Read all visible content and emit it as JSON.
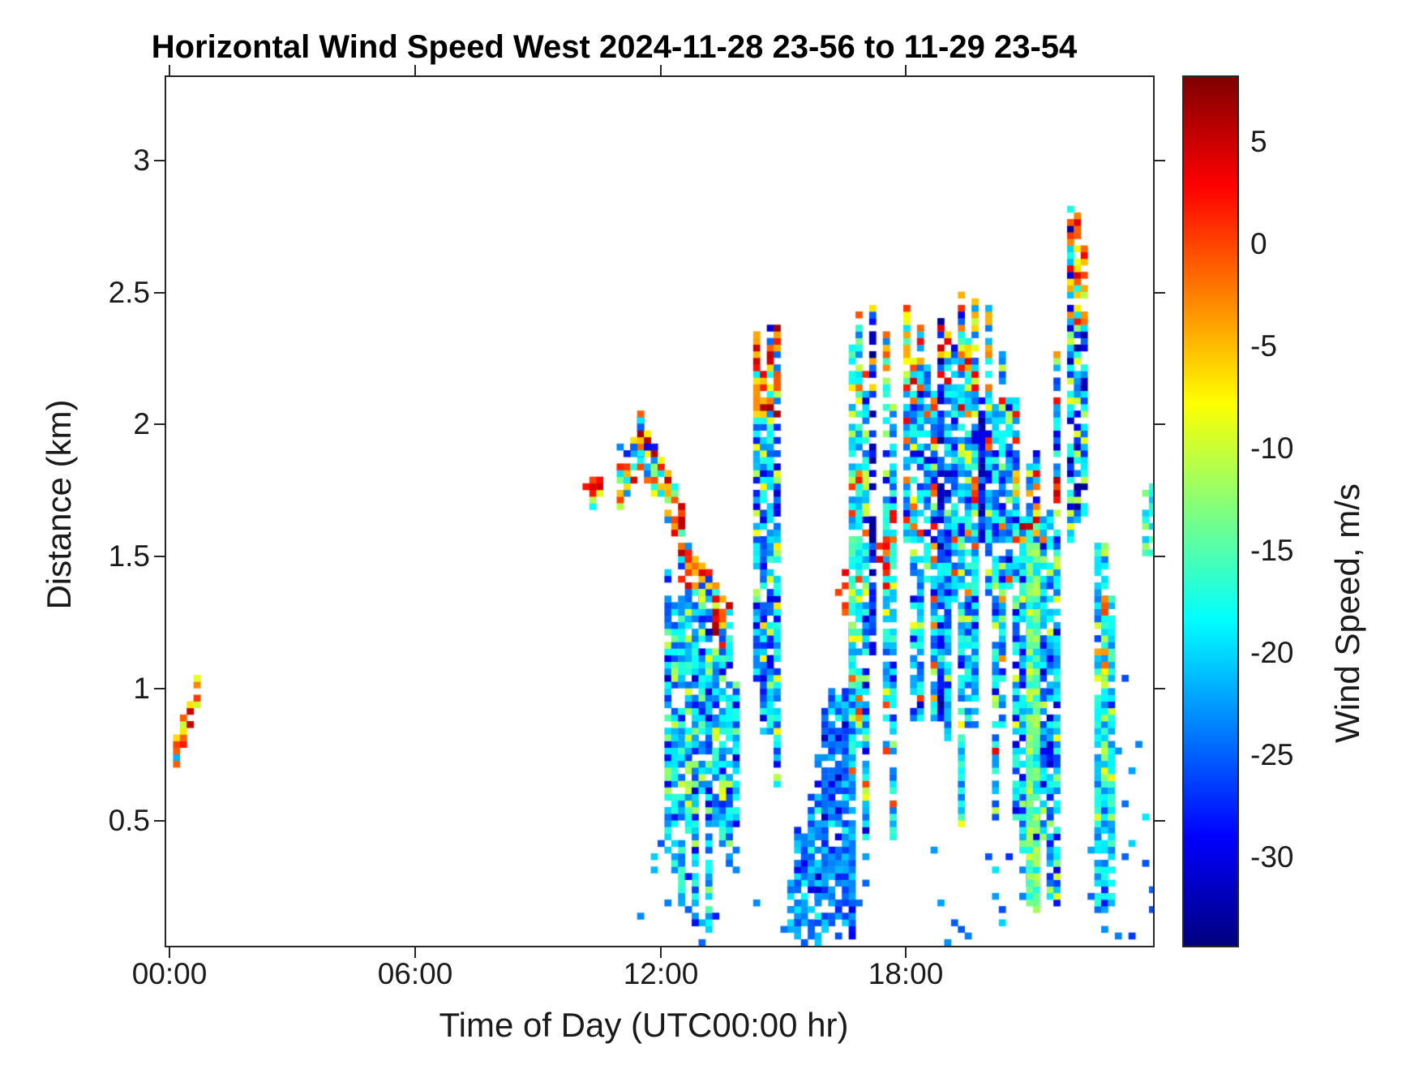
{
  "chart_data": {
    "type": "heatmap",
    "title": "Horizontal Wind Speed West 2024-11-28 23-56 to 11-29 23-54",
    "xlabel": "Time of Day (UTC00:00 hr)",
    "ylabel": "Distance (km)",
    "colorbar_label": "Wind Speed, m/s",
    "colormap": "jet",
    "background": "#ffffff",
    "frame_color": "#262626",
    "xlim_hours": [
      -0.07,
      24.03
    ],
    "ylim_km": [
      0.028,
      3.315
    ],
    "colorbar_range_ms": [
      -34.3,
      8.2
    ],
    "cell_size": {
      "hours": 0.1667,
      "km": 0.025
    },
    "grid": "off",
    "x_ticks": [
      {
        "hour": 0,
        "label": "00:00"
      },
      {
        "hour": 6,
        "label": "06:00"
      },
      {
        "hour": 12,
        "label": "12:00"
      },
      {
        "hour": 18,
        "label": "18:00"
      }
    ],
    "y_ticks": [
      {
        "km": 0.5,
        "label": "0.5"
      },
      {
        "km": 1.0,
        "label": "1"
      },
      {
        "km": 1.5,
        "label": "1.5"
      },
      {
        "km": 2.0,
        "label": "2"
      },
      {
        "km": 2.5,
        "label": "2.5"
      },
      {
        "km": 3.0,
        "label": "3"
      }
    ],
    "colorbar_ticks": [
      {
        "value": 5,
        "label": "5"
      },
      {
        "value": 0,
        "label": "0"
      },
      {
        "value": -5,
        "label": "-5"
      },
      {
        "value": -10,
        "label": "-10"
      },
      {
        "value": -15,
        "label": "-15"
      },
      {
        "value": -20,
        "label": "-20"
      },
      {
        "value": -25,
        "label": "-25"
      },
      {
        "value": -30,
        "label": "-30"
      }
    ],
    "clusters": [
      {
        "name": "dawn-stripe",
        "kind": "stripe",
        "seed": 11,
        "t": [
          0.03,
          0.66
        ],
        "z0": 0.75,
        "slope": 0.45,
        "hw": 0.055,
        "fill": 0.78,
        "mix": [
          [
            0.28,
            0,
            7
          ],
          [
            0.27,
            -4,
            1
          ],
          [
            0.2,
            -9,
            -5
          ],
          [
            0.1,
            -14,
            -9
          ],
          [
            0.15,
            -27,
            -17
          ]
        ]
      },
      {
        "name": "warm-blob-1010",
        "kind": "blob",
        "seed": 22,
        "t": [
          10.1,
          10.52
        ],
        "z": [
          1.69,
          1.83
        ],
        "fill": 0.85,
        "mix": [
          [
            0.45,
            1,
            7
          ],
          [
            0.2,
            -3,
            1
          ],
          [
            0.15,
            -11,
            -6
          ],
          [
            0.2,
            -21,
            -15
          ]
        ]
      },
      {
        "name": "arch-rise",
        "kind": "stripe",
        "seed": 33,
        "t": [
          10.85,
          11.4
        ],
        "z0": 1.76,
        "slope": 0.33,
        "hw": 0.085,
        "fill": 0.82,
        "mix": [
          [
            0.3,
            1,
            7
          ],
          [
            0.25,
            -4,
            1
          ],
          [
            0.15,
            -9,
            -4
          ],
          [
            0.12,
            -14,
            -9
          ],
          [
            0.18,
            -25,
            -16
          ]
        ]
      },
      {
        "name": "arch-fall",
        "kind": "stripe",
        "seed": 44,
        "t": [
          11.4,
          12.42
        ],
        "z0": 1.94,
        "slope": -0.33,
        "hw": 0.095,
        "fill": 0.78,
        "mix": [
          [
            0.3,
            1,
            7
          ],
          [
            0.25,
            -4,
            1
          ],
          [
            0.15,
            -9,
            -4
          ],
          [
            0.12,
            -14,
            -9
          ],
          [
            0.18,
            -25,
            -16
          ]
        ]
      },
      {
        "name": "arch-fringe",
        "kind": "specks",
        "seed": 55,
        "t": [
          10.9,
          12.25
        ],
        "z": [
          1.88,
          2.03
        ],
        "density": 0.2,
        "mix": [
          [
            0.55,
            -26,
            -18
          ],
          [
            0.25,
            -31,
            -26
          ],
          [
            0.2,
            -16,
            -11
          ]
        ]
      },
      {
        "name": "descending-tail",
        "kind": "stripe",
        "seed": 66,
        "t": [
          12.42,
          13.6
        ],
        "z0": 1.5,
        "slope": -0.25,
        "hw": 0.09,
        "fill": 0.72,
        "mix": [
          [
            0.22,
            0,
            6
          ],
          [
            0.18,
            -6,
            -1
          ],
          [
            0.15,
            -12,
            -7
          ],
          [
            0.27,
            -21,
            -15
          ],
          [
            0.18,
            -27,
            -21
          ]
        ]
      },
      {
        "name": "red-blob-1320",
        "kind": "blob",
        "seed": 77,
        "t": [
          13.12,
          13.5
        ],
        "z": [
          1.19,
          1.35
        ],
        "fill": 0.8,
        "mix": [
          [
            0.55,
            2,
            8
          ],
          [
            0.25,
            -2,
            2
          ],
          [
            0.2,
            -9,
            -3
          ]
        ]
      },
      {
        "name": "midday-columns",
        "kind": "columns",
        "seed": 88,
        "t": [
          12.15,
          13.95
        ],
        "col_prob": 0.88,
        "bottom": [
          0.06,
          0.55
        ],
        "topf": [
          1.5,
          1.15
        ],
        "topvar": 0.15,
        "fill": 0.82,
        "mix": [
          [
            0.42,
            -20,
            -16
          ],
          [
            0.36,
            -26,
            -21
          ],
          [
            0.1,
            -31,
            -27
          ],
          [
            0.12,
            -14,
            -9
          ]
        ]
      },
      {
        "name": "green-streak-1300",
        "kind": "stripe",
        "seed": 99,
        "t": [
          12.85,
          13.38
        ],
        "z0": 1.32,
        "slope": -1.45,
        "hw": 0.028,
        "fill": 0.9,
        "mix": [
          [
            0.5,
            -12,
            -8
          ],
          [
            0.35,
            -16,
            -12
          ],
          [
            0.15,
            -19,
            -16
          ]
        ]
      },
      {
        "name": "midday-bottom-specks",
        "kind": "specks",
        "seed": 110,
        "t": [
          11.3,
          14.45
        ],
        "z": [
          0.03,
          0.45
        ],
        "density": 0.05,
        "mix": [
          [
            0.7,
            -29,
            -23
          ],
          [
            0.3,
            -24,
            -19
          ]
        ]
      },
      {
        "name": "column-1430",
        "kind": "columns",
        "seed": 121,
        "t": [
          14.33,
          14.87
        ],
        "col_prob": 1,
        "bottom": [
          0.55,
          0.5
        ],
        "top": [
          2.45,
          0.35
        ],
        "fill": 0.85,
        "mix": [
          [
            0.4,
            -21,
            -16
          ],
          [
            0.3,
            -27,
            -22
          ],
          [
            0.12,
            -31,
            -28
          ],
          [
            0.18,
            -13,
            -6
          ]
        ],
        "cap": {
          "z": 2.02,
          "prob": 0.75,
          "mix": [
            [
              0.5,
              0,
              7
            ],
            [
              0.3,
              -5,
              0
            ],
            [
              0.2,
              -10,
              -5
            ]
          ]
        }
      },
      {
        "name": "rain-columns",
        "kind": "columns",
        "seed": 132,
        "t": [
          15.05,
          16.55
        ],
        "col_prob": 0.95,
        "bottom": [
          0.03,
          0.12
        ],
        "topf": [
          0.5,
          1.35
        ],
        "topvar": 0.3,
        "fill": 0.85,
        "mix": [
          [
            0.5,
            -27,
            -22
          ],
          [
            0.32,
            -23,
            -19
          ],
          [
            0.12,
            -31,
            -28
          ],
          [
            0.06,
            -18,
            -15
          ]
        ]
      },
      {
        "name": "rain-specks",
        "kind": "specks",
        "seed": 143,
        "t": [
          14.9,
          17.0
        ],
        "z": [
          0.03,
          0.35
        ],
        "density": 0.1,
        "mix": [
          [
            0.8,
            -28,
            -22
          ],
          [
            0.2,
            -24,
            -19
          ]
        ]
      },
      {
        "name": "warm-fleck-1625",
        "kind": "blob",
        "seed": 154,
        "t": [
          16.28,
          16.5
        ],
        "z": [
          1.27,
          1.43
        ],
        "fill": 0.45,
        "mix": [
          [
            0.6,
            -2,
            4
          ],
          [
            0.4,
            -9,
            -4
          ]
        ]
      },
      {
        "name": "column-1640",
        "kind": "columns",
        "seed": 165,
        "t": [
          16.6,
          16.84
        ],
        "col_prob": 1,
        "bottom": [
          0.55,
          0.35
        ],
        "top": [
          2.45,
          0.2
        ],
        "fill": 0.78,
        "mix": [
          [
            0.5,
            -20,
            -15
          ],
          [
            0.2,
            -24,
            -20
          ],
          [
            0.18,
            -13,
            -7
          ],
          [
            0.12,
            -4,
            2
          ]
        ],
        "cap": {
          "z": 2.3,
          "prob": 0.5,
          "mix": [
            [
              0.6,
              -9,
              -4
            ],
            [
              0.4,
              -3,
              2
            ]
          ]
        }
      },
      {
        "name": "evening-columns",
        "kind": "columns",
        "seed": 176,
        "t": [
          17.0,
          20.6
        ],
        "col_prob": 0.82,
        "bottom": [
          0.85,
          0.75
        ],
        "deep_prob": 0.22,
        "deep_bottom": [
          0.4,
          0.5
        ],
        "top": [
          2.55,
          0.6
        ],
        "fill": 0.8,
        "dark_prob": 0.13,
        "dark_mix": [
          [
            0.6,
            -33.5,
            -29
          ],
          [
            0.4,
            -28,
            -24
          ]
        ],
        "mix": [
          [
            0.44,
            -21,
            -16
          ],
          [
            0.3,
            -26,
            -21
          ],
          [
            0.07,
            -31,
            -28
          ],
          [
            0.1,
            -13,
            -8
          ],
          [
            0.09,
            -4,
            3
          ]
        ],
        "cap": {
          "z": 2.12,
          "prob": 0.5,
          "mix": [
            [
              0.45,
              -2,
              5
            ],
            [
              0.3,
              -7,
              -2
            ],
            [
              0.25,
              -11,
              -6
            ]
          ]
        }
      },
      {
        "name": "evening-low-columns",
        "kind": "columns",
        "seed": 187,
        "t": [
          18.05,
          19.65
        ],
        "col_prob": 0.6,
        "bottom": [
          0.55,
          0.55
        ],
        "top": [
          1.8,
          0.5
        ],
        "fill": 0.75,
        "mix": [
          [
            0.5,
            -21,
            -16
          ],
          [
            0.35,
            -26,
            -21
          ],
          [
            0.15,
            -30,
            -26
          ]
        ]
      },
      {
        "name": "red-spots-1720",
        "kind": "blob",
        "seed": 198,
        "t": [
          17.22,
          17.5
        ],
        "z": [
          1.38,
          1.58
        ],
        "fill": 0.5,
        "mix": [
          [
            0.6,
            1,
            7
          ],
          [
            0.4,
            -4,
            1
          ]
        ]
      },
      {
        "name": "evening-bottom-specks",
        "kind": "specks",
        "seed": 209,
        "t": [
          18.3,
          21.0
        ],
        "z": [
          0.03,
          0.38
        ],
        "density": 0.06,
        "mix": [
          [
            0.8,
            -28,
            -22
          ],
          [
            0.2,
            -23,
            -19
          ]
        ]
      },
      {
        "name": "night-columns",
        "kind": "columns",
        "seed": 220,
        "t": [
          20.62,
          21.78
        ],
        "col_prob": 0.85,
        "bottom": [
          0.12,
          0.4
        ],
        "top": [
          2.3,
          0.8
        ],
        "fill": 0.82,
        "mix": [
          [
            0.42,
            -21,
            -16
          ],
          [
            0.34,
            -27,
            -21
          ],
          [
            0.12,
            -31,
            -28
          ],
          [
            0.12,
            -14,
            -8
          ]
        ],
        "cap": {
          "z": 1.55,
          "prob": 0.28,
          "mix": [
            [
              0.5,
              0,
              6
            ],
            [
              0.5,
              -6,
              0
            ]
          ]
        }
      },
      {
        "name": "green-column-2100",
        "kind": "columns",
        "seed": 231,
        "t": [
          21.0,
          21.2
        ],
        "col_prob": 1,
        "bottom": [
          0.15,
          0.1
        ],
        "top": [
          1.62,
          0.15
        ],
        "fill": 0.92,
        "mix": [
          [
            0.5,
            -13,
            -9
          ],
          [
            0.3,
            -16,
            -13
          ],
          [
            0.2,
            -19,
            -15
          ]
        ]
      },
      {
        "name": "spike-2200",
        "kind": "columns",
        "seed": 242,
        "t": [
          21.85,
          22.2
        ],
        "col_prob": 1,
        "bottom": [
          1.25,
          0.5
        ],
        "top": [
          2.82,
          0.4
        ],
        "fill": 0.8,
        "mix": [
          [
            0.35,
            -21,
            -16
          ],
          [
            0.25,
            -27,
            -22
          ],
          [
            0.25,
            -33.5,
            -29
          ],
          [
            0.15,
            -13,
            -6
          ]
        ],
        "cap": {
          "z": 2.35,
          "prob": 0.45,
          "mix": [
            [
              0.5,
              -1,
              5
            ],
            [
              0.5,
              -7,
              -1
            ]
          ]
        }
      },
      {
        "name": "warm-patch-2210",
        "kind": "blob",
        "seed": 253,
        "t": [
          22.02,
          22.3
        ],
        "z": [
          2.52,
          2.68
        ],
        "fill": 0.5,
        "mix": [
          [
            0.6,
            -1,
            6
          ],
          [
            0.4,
            -6,
            -1
          ]
        ]
      },
      {
        "name": "column-2240",
        "kind": "columns",
        "seed": 264,
        "t": [
          22.55,
          22.95
        ],
        "col_prob": 1,
        "bottom": [
          0.05,
          0.2
        ],
        "top": [
          1.55,
          0.25
        ],
        "fill": 0.85,
        "mix": [
          [
            0.5,
            -19,
            -15
          ],
          [
            0.3,
            -24,
            -19
          ],
          [
            0.08,
            -28,
            -24
          ],
          [
            0.12,
            -12,
            -7
          ]
        ]
      },
      {
        "name": "warm-2240",
        "kind": "blob",
        "seed": 275,
        "t": [
          22.6,
          22.88
        ],
        "z": [
          1.02,
          1.34
        ],
        "fill": 0.5,
        "mix": [
          [
            0.5,
            1,
            8
          ],
          [
            0.3,
            -3,
            1
          ],
          [
            0.2,
            -8,
            -3
          ]
        ]
      },
      {
        "name": "night-specks",
        "kind": "specks",
        "seed": 286,
        "t": [
          22.3,
          24.05
        ],
        "z": [
          0.03,
          0.6
        ],
        "density": 0.07,
        "mix": [
          [
            0.8,
            -28,
            -22
          ],
          [
            0.2,
            -23,
            -18
          ]
        ]
      },
      {
        "name": "specks-2315",
        "kind": "specks",
        "seed": 297,
        "t": [
          23.0,
          23.6
        ],
        "z": [
          0.6,
          1.12
        ],
        "density": 0.05,
        "mix": [
          [
            0.9,
            -27,
            -21
          ],
          [
            0.1,
            -20,
            -16
          ]
        ]
      },
      {
        "name": "edge-streak",
        "kind": "columns",
        "seed": 308,
        "t": [
          23.84,
          24.1
        ],
        "col_prob": 1,
        "bottom": [
          1.38,
          0.15
        ],
        "top": [
          1.78,
          0.12
        ],
        "fill": 0.8,
        "mix": [
          [
            0.5,
            -19,
            -15
          ],
          [
            0.3,
            -22,
            -19
          ],
          [
            0.2,
            -14,
            -10
          ]
        ]
      }
    ]
  }
}
